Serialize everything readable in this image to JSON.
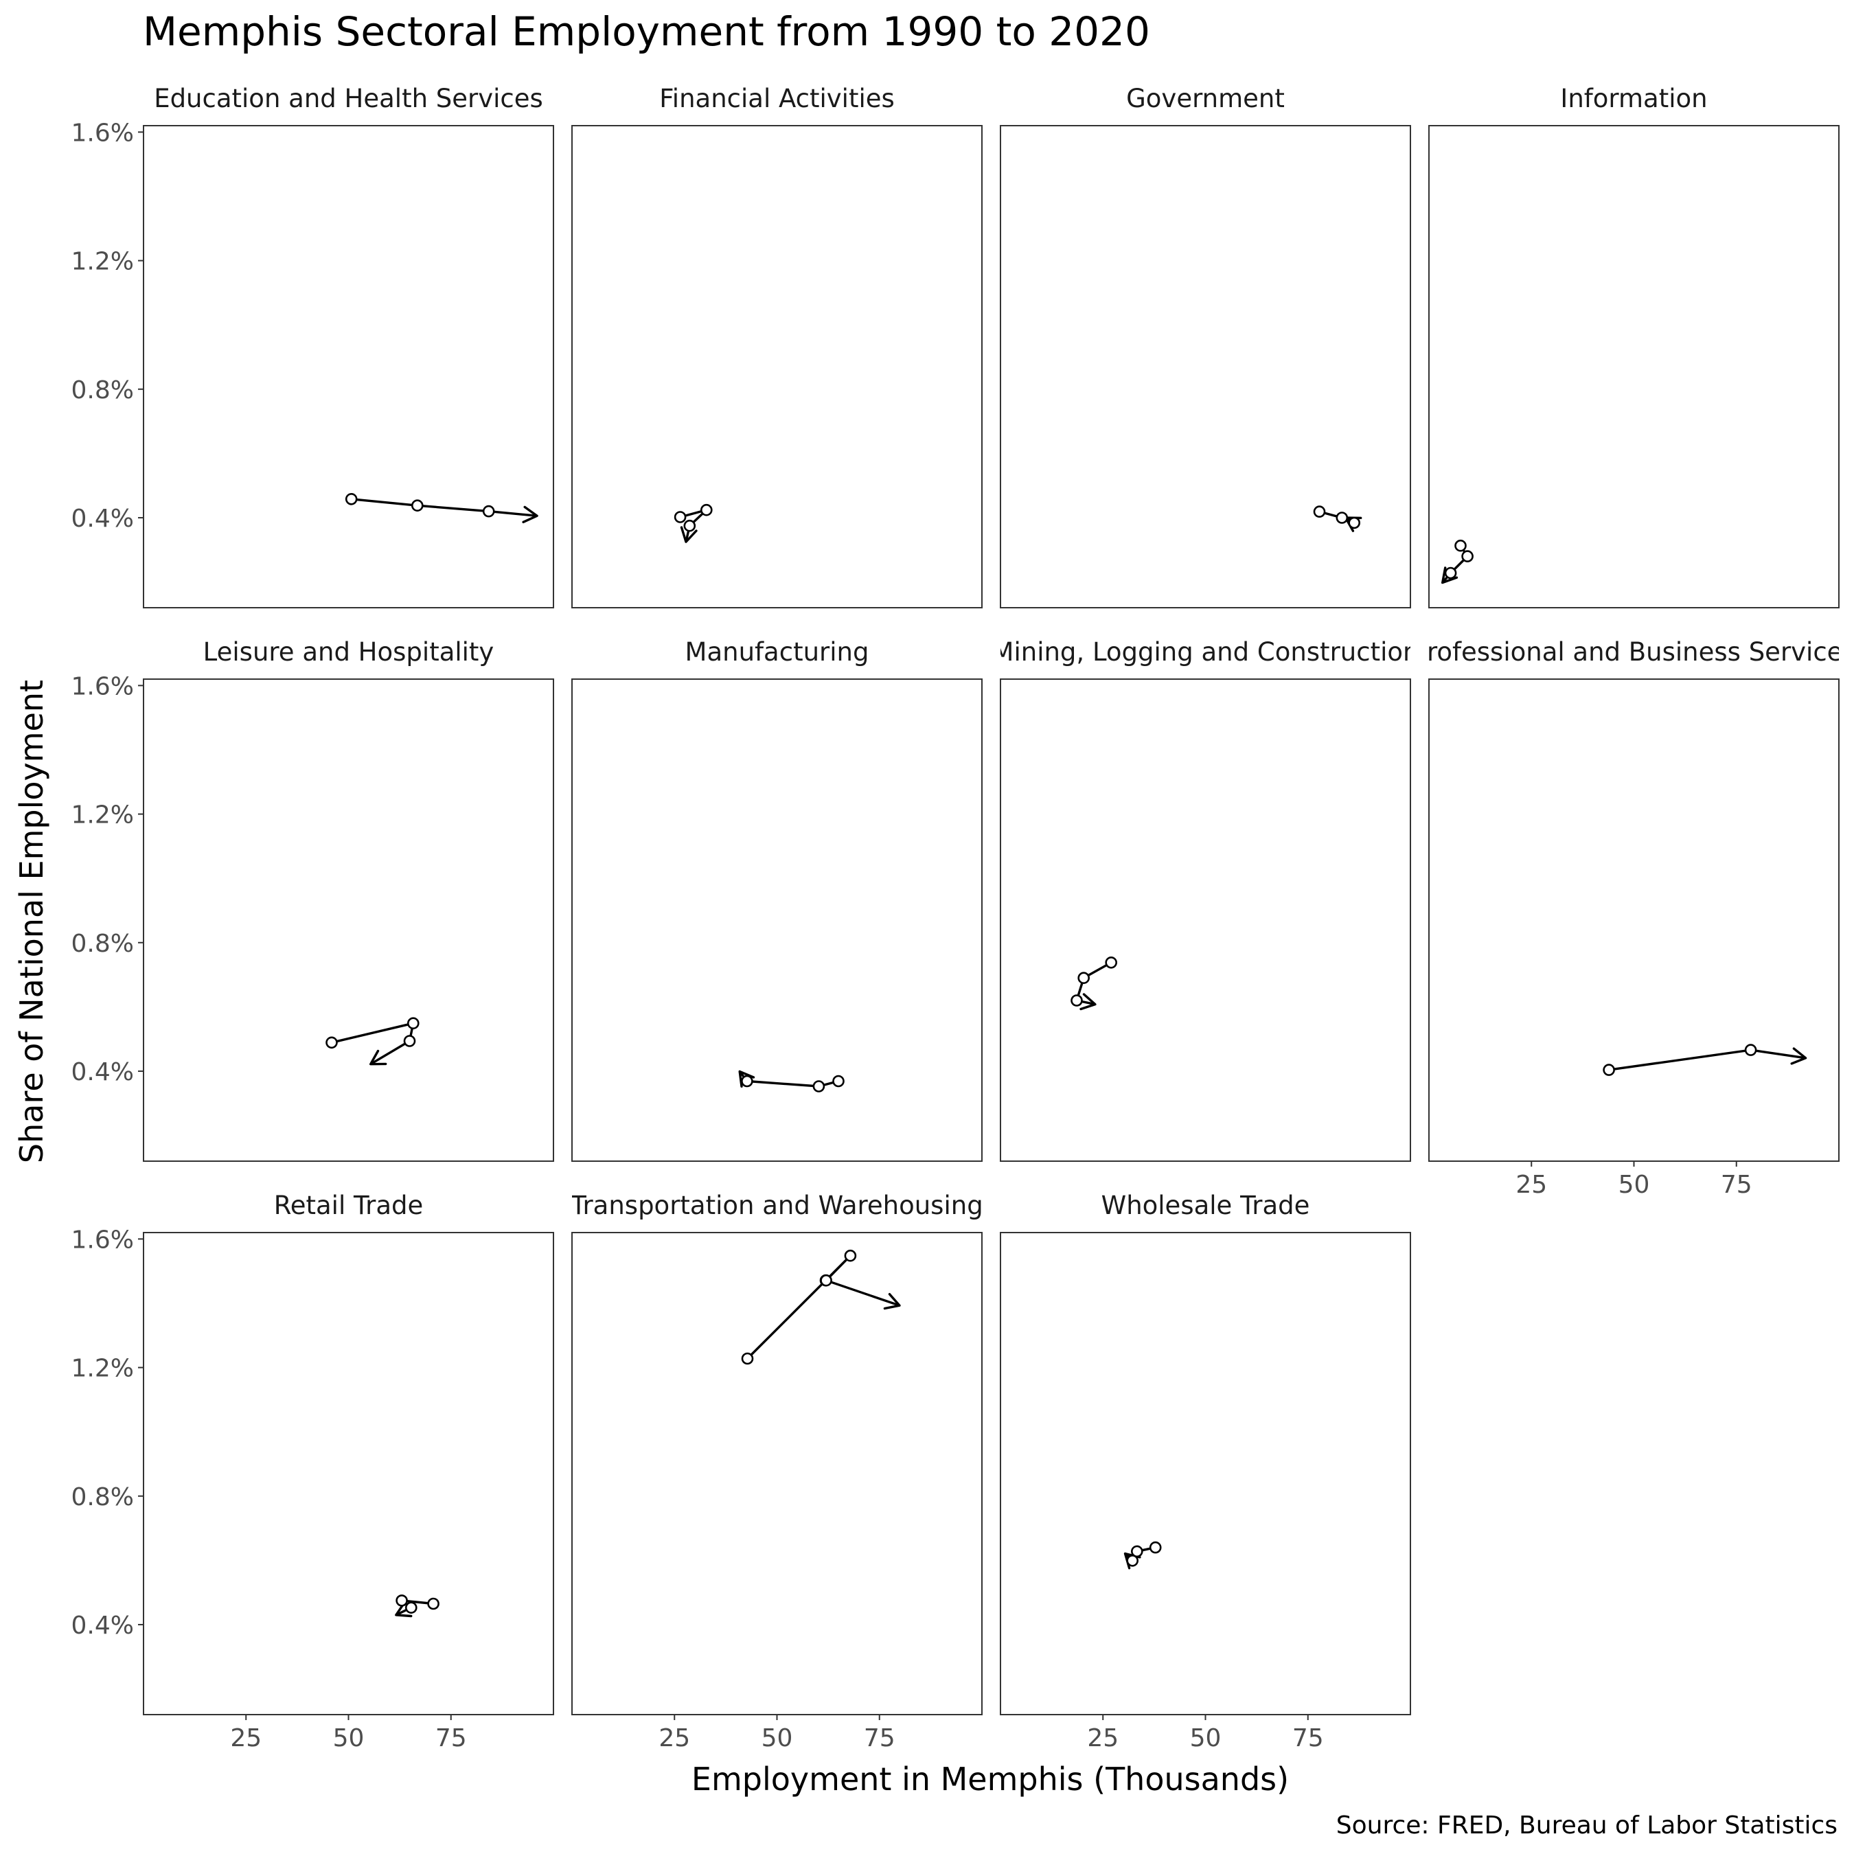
{
  "title": "Memphis Sectoral Employment from 1990 to 2020",
  "caption": "Source: FRED, Bureau of Labor Statistics",
  "chart_data": {
    "type": "line",
    "title": "Memphis Sectoral Employment from 1990 to 2020",
    "xlabel": "Employment in Memphis (Thousands)",
    "ylabel": "Share of National Employment",
    "xlim": [
      0,
      100
    ],
    "ylim": [
      0.12,
      1.62
    ],
    "x_ticks": [
      25,
      50,
      75
    ],
    "y_ticks": [
      0.4,
      0.8,
      1.2,
      1.6
    ],
    "y_tick_labels": [
      "0.4%",
      "0.8%",
      "1.2%",
      "1.6%"
    ],
    "panels": [
      {
        "name": "Education and Health Services",
        "x": [
          50.7,
          66.8,
          84.2,
          96.0
        ],
        "y": [
          0.458,
          0.438,
          0.42,
          0.406
        ]
      },
      {
        "name": "Financial Activities",
        "x": [
          26.4,
          32.8,
          28.7,
          27.8
        ],
        "y": [
          0.402,
          0.424,
          0.375,
          0.325
        ]
      },
      {
        "name": "Government",
        "x": [
          77.8,
          83.3,
          86.3,
          84.2
        ],
        "y": [
          0.419,
          0.4,
          0.384,
          0.4
        ]
      },
      {
        "name": "Information",
        "x": [
          7.7,
          9.4,
          5.3,
          3.3
        ],
        "y": [
          0.313,
          0.28,
          0.228,
          0.198
        ]
      },
      {
        "name": "Leisure and Hospitality",
        "x": [
          45.9,
          65.8,
          64.9,
          55.4
        ],
        "y": [
          0.489,
          0.549,
          0.494,
          0.422
        ]
      },
      {
        "name": "Manufacturing",
        "x": [
          65.0,
          60.2,
          42.7,
          40.9
        ],
        "y": [
          0.369,
          0.353,
          0.369,
          0.399
        ]
      },
      {
        "name": "Mining, Logging and Construction",
        "x": [
          27.0,
          20.3,
          18.6,
          23.1
        ],
        "y": [
          0.738,
          0.69,
          0.62,
          0.608
        ]
      },
      {
        "name": "Professional and Business Services",
        "x": [
          43.9,
          78.5,
          91.9
        ],
        "y": [
          0.404,
          0.466,
          0.441
        ]
      },
      {
        "name": "Retail Trade",
        "x": [
          70.7,
          63.0,
          65.3,
          61.6
        ],
        "y": [
          0.465,
          0.475,
          0.453,
          0.43
        ]
      },
      {
        "name": "Transportation and Warehousing",
        "x": [
          42.8,
          61.9,
          67.9,
          62.0,
          79.9
        ],
        "y": [
          1.228,
          1.471,
          1.548,
          1.471,
          1.393
        ]
      },
      {
        "name": "Wholesale Trade",
        "x": [
          37.8,
          33.3,
          32.2,
          30.4
        ],
        "y": [
          0.64,
          0.628,
          0.599,
          0.621
        ]
      }
    ]
  }
}
